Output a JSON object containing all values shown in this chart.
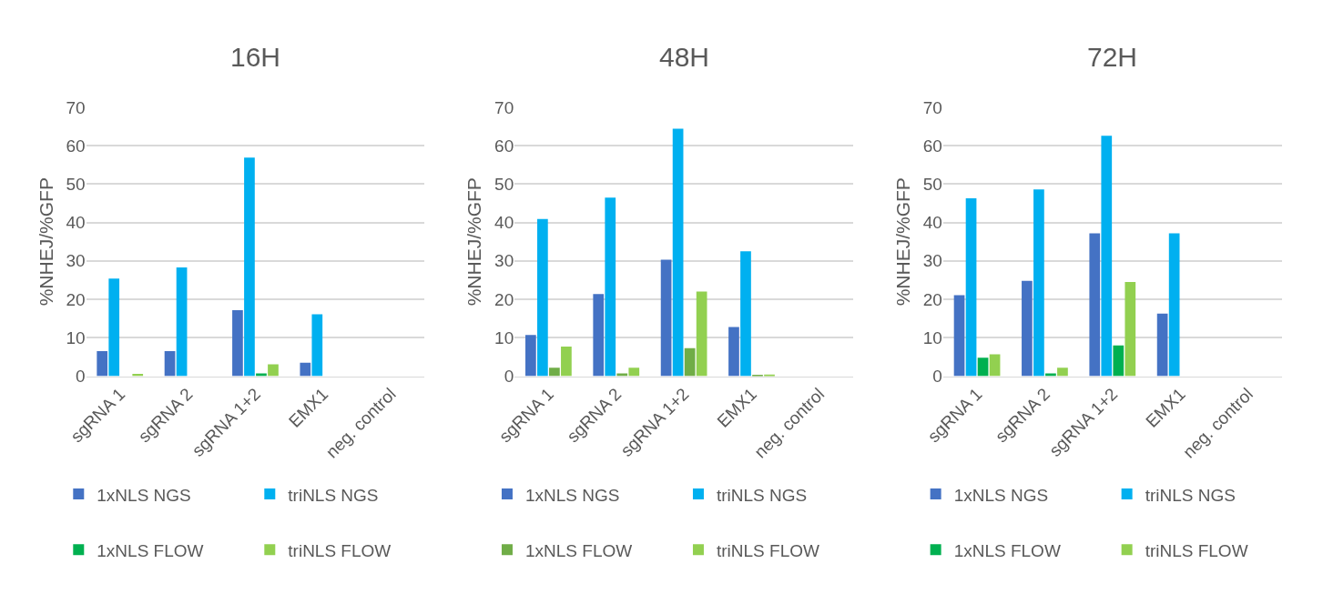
{
  "chart_data": [
    {
      "type": "bar",
      "title": "16H",
      "ylabel": "%NHEJ/%GFP",
      "categories": [
        "sgRNA 1",
        "sgRNA 2",
        "sgRNA 1+2",
        "EMX1",
        "neg. control"
      ],
      "ylim": [
        0,
        70
      ],
      "yticks": [
        0,
        10,
        20,
        30,
        40,
        50,
        60,
        70
      ],
      "grid": "y",
      "legend": "bottom",
      "series": [
        {
          "name": "1xNLS NGS",
          "color": "#4472c4",
          "values": [
            6.5,
            6.5,
            17.2,
            3.5,
            0
          ]
        },
        {
          "name": "triNLS NGS",
          "color": "#00b0f0",
          "values": [
            25.4,
            28.3,
            56.9,
            16.1,
            0
          ]
        },
        {
          "name": "1xNLS FLOW",
          "color": "#00b050",
          "values": [
            0,
            0,
            0.7,
            0,
            0
          ]
        },
        {
          "name": "triNLS FLOW",
          "color": "#92d050",
          "values": [
            0.6,
            0,
            3.1,
            0,
            0
          ]
        }
      ]
    },
    {
      "type": "bar",
      "title": "48H",
      "ylabel": "%NHEJ/%GFP",
      "categories": [
        "sgRNA 1",
        "sgRNA 2",
        "sgRNA 1+2",
        "EMX1",
        "neg. control"
      ],
      "ylim": [
        0,
        70
      ],
      "yticks": [
        0,
        10,
        20,
        30,
        40,
        50,
        60,
        70
      ],
      "grid": "y",
      "legend": "bottom",
      "series": [
        {
          "name": "1xNLS NGS",
          "color": "#4472c4",
          "values": [
            10.7,
            21.4,
            30.3,
            12.8,
            0
          ]
        },
        {
          "name": "triNLS NGS",
          "color": "#00b0f0",
          "values": [
            40.9,
            46.5,
            64.4,
            32.5,
            0
          ]
        },
        {
          "name": "1xNLS FLOW",
          "color": "#70ad47",
          "values": [
            2.2,
            0.7,
            7.3,
            0.2,
            0
          ]
        },
        {
          "name": "triNLS FLOW",
          "color": "#92d050",
          "values": [
            7.7,
            2.2,
            22.0,
            0.4,
            0
          ]
        }
      ]
    },
    {
      "type": "bar",
      "title": "72H",
      "ylabel": "%NHEJ/%GFP",
      "categories": [
        "sgRNA 1",
        "sgRNA 2",
        "sgRNA 1+2",
        "EMX1",
        "neg. control"
      ],
      "ylim": [
        0,
        70
      ],
      "yticks": [
        0,
        10,
        20,
        30,
        40,
        50,
        60,
        70
      ],
      "grid": "y",
      "legend": "bottom",
      "series": [
        {
          "name": "1xNLS NGS",
          "color": "#4472c4",
          "values": [
            21.1,
            24.8,
            37.2,
            16.3,
            0
          ]
        },
        {
          "name": "triNLS NGS",
          "color": "#00b0f0",
          "values": [
            46.3,
            48.6,
            62.6,
            37.2,
            0
          ]
        },
        {
          "name": "1xNLS FLOW",
          "color": "#00b050",
          "values": [
            4.8,
            0.7,
            8.0,
            0,
            0
          ]
        },
        {
          "name": "triNLS FLOW",
          "color": "#92d050",
          "values": [
            5.7,
            2.2,
            24.5,
            0,
            0
          ]
        }
      ]
    }
  ]
}
